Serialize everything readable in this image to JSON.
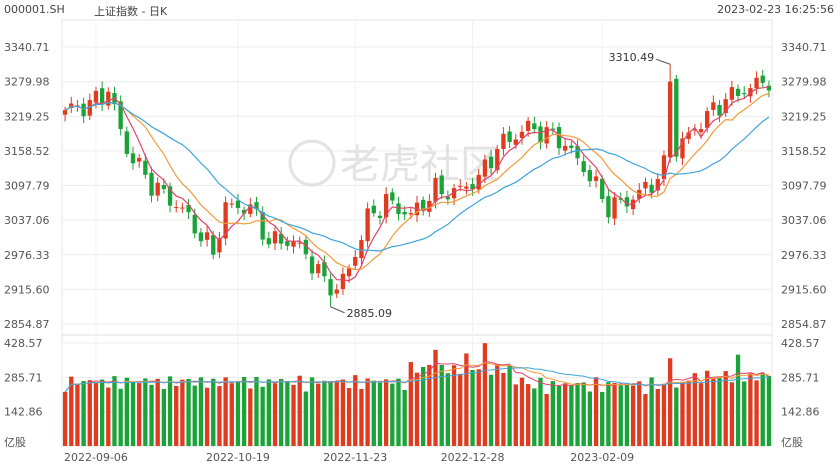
{
  "header": {
    "symbol": "000001.SH",
    "name": "上证指数 - 日K",
    "timestamp": "2023-02-23 16:25:56"
  },
  "watermark": "老虎社区",
  "chart_data": [
    {
      "type": "candlestick",
      "title": "",
      "y_ticks": [
        "3340.71",
        "3279.98",
        "3219.25",
        "3158.52",
        "3097.79",
        "3037.06",
        "2976.33",
        "2915.60",
        "2854.87"
      ],
      "ylim": [
        2854.87,
        3340.71
      ],
      "x_ticks": [
        "2022-09-06",
        "2022-10-19",
        "2022-11-23",
        "2022-12-28",
        "2023-02-09"
      ],
      "annotations": [
        {
          "text": "3310.49",
          "value": 3310.49,
          "label": "high"
        },
        {
          "text": "2885.09",
          "value": 2885.09,
          "label": "low"
        }
      ],
      "up_color": "#e03a1f",
      "down_color": "#1aa338",
      "ma_colors": [
        "#e0436a",
        "#f29b3b",
        "#3ea4dc"
      ],
      "grid": true
    },
    {
      "type": "bar",
      "title": "",
      "y_ticks": [
        "428.57",
        "285.71",
        "142.86"
      ],
      "ylim": [
        0,
        428.57
      ],
      "unit": "亿股",
      "up_color": "#e03a1f",
      "down_color": "#1aa338"
    }
  ]
}
